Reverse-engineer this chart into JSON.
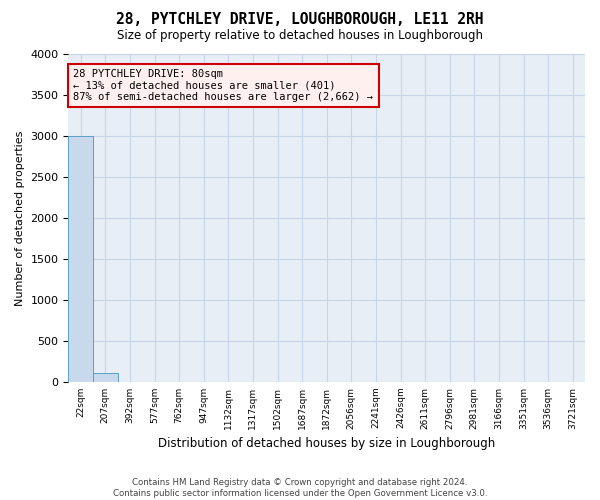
{
  "title": "28, PYTCHLEY DRIVE, LOUGHBOROUGH, LE11 2RH",
  "subtitle": "Size of property relative to detached houses in Loughborough",
  "xlabel": "Distribution of detached houses by size in Loughborough",
  "ylabel": "Number of detached properties",
  "bin_labels": [
    "22sqm",
    "207sqm",
    "392sqm",
    "577sqm",
    "762sqm",
    "947sqm",
    "1132sqm",
    "1317sqm",
    "1502sqm",
    "1687sqm",
    "1872sqm",
    "2056sqm",
    "2241sqm",
    "2426sqm",
    "2611sqm",
    "2796sqm",
    "2981sqm",
    "3166sqm",
    "3351sqm",
    "3536sqm",
    "3721sqm"
  ],
  "bar_heights": [
    3000,
    110,
    2,
    1,
    1,
    1,
    1,
    1,
    1,
    1,
    1,
    1,
    1,
    1,
    1,
    1,
    1,
    1,
    1,
    1,
    0
  ],
  "bar_color": "#c8d9eb",
  "bar_edge_color": "#5a9fc4",
  "ylim": [
    0,
    4000
  ],
  "yticks": [
    0,
    500,
    1000,
    1500,
    2000,
    2500,
    3000,
    3500,
    4000
  ],
  "annotation_box_text": "28 PYTCHLEY DRIVE: 80sqm\n← 13% of detached houses are smaller (401)\n87% of semi-detached houses are larger (2,662) →",
  "annotation_facecolor": "#fff0f0",
  "annotation_edgecolor": "#cc0000",
  "grid_color": "#c8d4e8",
  "background_color": "#e8eef5",
  "footer_line1": "Contains HM Land Registry data © Crown copyright and database right 2024.",
  "footer_line2": "Contains public sector information licensed under the Open Government Licence v3.0."
}
